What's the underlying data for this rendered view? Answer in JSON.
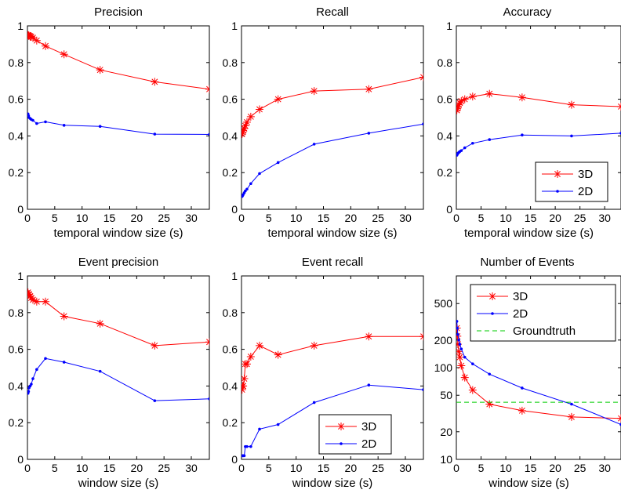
{
  "colors": {
    "s3d": "#ff0000",
    "s2d": "#0000ff",
    "groundtruth": "#00cc00",
    "axis": "#000000",
    "background": "#ffffff"
  },
  "chart_data": [
    {
      "type": "line",
      "title": "Precision",
      "xlabel": "temporal window size (s)",
      "xlim": [
        0,
        33.3
      ],
      "xticks": [
        0,
        5,
        10,
        15,
        20,
        25,
        30
      ],
      "ylim": [
        0,
        1
      ],
      "yticks": [
        0,
        0.2,
        0.4,
        0.6,
        0.8,
        1
      ],
      "ytick_labels": [
        "0",
        "0.2",
        "0.4",
        "0.6",
        "0.8",
        "1"
      ],
      "yscale": "linear",
      "legend": null,
      "series": [
        {
          "key": "3D",
          "marker": "star",
          "x": [
            0.1,
            0.2,
            0.3,
            0.5,
            0.7,
            1.0,
            1.7,
            3.3,
            6.7,
            13.3,
            23.3,
            33.3
          ],
          "y": [
            0.95,
            0.948,
            0.946,
            0.944,
            0.94,
            0.935,
            0.92,
            0.89,
            0.845,
            0.76,
            0.695,
            0.655
          ]
        },
        {
          "key": "2D",
          "marker": "dot",
          "x": [
            0.1,
            0.2,
            0.3,
            0.5,
            0.7,
            1.0,
            1.7,
            3.3,
            6.7,
            13.3,
            23.3,
            33.3
          ],
          "y": [
            0.52,
            0.51,
            0.5,
            0.495,
            0.49,
            0.485,
            0.468,
            0.477,
            0.458,
            0.452,
            0.41,
            0.408
          ]
        }
      ]
    },
    {
      "type": "line",
      "title": "Recall",
      "xlabel": "temporal window size (s)",
      "xlim": [
        0,
        33.3
      ],
      "xticks": [
        0,
        5,
        10,
        15,
        20,
        25,
        30
      ],
      "ylim": [
        0,
        1
      ],
      "yticks": [
        0,
        0.2,
        0.4,
        0.6,
        0.8,
        1
      ],
      "ytick_labels": [
        "0",
        "0.2",
        "0.4",
        "0.6",
        "0.8",
        "1"
      ],
      "yscale": "linear",
      "legend": null,
      "series": [
        {
          "key": "3D",
          "marker": "star",
          "x": [
            0.1,
            0.2,
            0.3,
            0.5,
            0.7,
            1.0,
            1.7,
            3.3,
            6.7,
            13.3,
            23.3,
            33.3
          ],
          "y": [
            0.41,
            0.42,
            0.43,
            0.44,
            0.455,
            0.475,
            0.505,
            0.545,
            0.6,
            0.645,
            0.655,
            0.72
          ]
        },
        {
          "key": "2D",
          "marker": "dot",
          "x": [
            0.1,
            0.2,
            0.3,
            0.5,
            0.7,
            1.0,
            1.7,
            3.3,
            6.7,
            13.3,
            23.3,
            33.3
          ],
          "y": [
            0.07,
            0.075,
            0.08,
            0.09,
            0.1,
            0.11,
            0.14,
            0.195,
            0.255,
            0.355,
            0.415,
            0.465
          ]
        }
      ]
    },
    {
      "type": "line",
      "title": "Accuracy",
      "xlabel": "temporal window size (s)",
      "xlim": [
        0,
        33.3
      ],
      "xticks": [
        0,
        5,
        10,
        15,
        20,
        25,
        30
      ],
      "ylim": [
        0,
        1
      ],
      "yticks": [
        0,
        0.2,
        0.4,
        0.6,
        0.8,
        1
      ],
      "ytick_labels": [
        "0",
        "0.2",
        "0.4",
        "0.6",
        "0.8",
        "1"
      ],
      "yscale": "linear",
      "legend": "bottom-right",
      "series": [
        {
          "key": "3D",
          "marker": "star",
          "name": "3D",
          "x": [
            0.1,
            0.2,
            0.3,
            0.5,
            0.7,
            1.0,
            1.7,
            3.3,
            6.7,
            13.3,
            23.3,
            33.3
          ],
          "y": [
            0.54,
            0.55,
            0.56,
            0.57,
            0.58,
            0.59,
            0.6,
            0.615,
            0.63,
            0.61,
            0.57,
            0.56
          ]
        },
        {
          "key": "2D",
          "marker": "dot",
          "name": "2D",
          "x": [
            0.1,
            0.2,
            0.3,
            0.5,
            0.7,
            1.0,
            1.7,
            3.3,
            6.7,
            13.3,
            23.3,
            33.3
          ],
          "y": [
            0.295,
            0.3,
            0.305,
            0.31,
            0.315,
            0.32,
            0.335,
            0.36,
            0.38,
            0.405,
            0.4,
            0.415
          ]
        }
      ]
    },
    {
      "type": "line",
      "title": "Event precision",
      "xlabel": "window size (s)",
      "xlim": [
        0,
        33.3
      ],
      "xticks": [
        0,
        5,
        10,
        15,
        20,
        25,
        30
      ],
      "ylim": [
        0,
        1
      ],
      "yticks": [
        0,
        0.2,
        0.4,
        0.6,
        0.8,
        1
      ],
      "ytick_labels": [
        "0",
        "0.2",
        "0.4",
        "0.6",
        "0.8",
        "1"
      ],
      "yscale": "linear",
      "legend": null,
      "series": [
        {
          "key": "3D",
          "marker": "star",
          "x": [
            0.1,
            0.2,
            0.3,
            0.5,
            0.7,
            1.0,
            1.7,
            3.3,
            6.7,
            13.3,
            23.3,
            33.3
          ],
          "y": [
            0.91,
            0.9,
            0.9,
            0.89,
            0.88,
            0.87,
            0.86,
            0.86,
            0.78,
            0.74,
            0.62,
            0.64
          ]
        },
        {
          "key": "2D",
          "marker": "dot",
          "x": [
            0.1,
            0.2,
            0.3,
            0.5,
            0.7,
            1.0,
            1.7,
            3.3,
            6.7,
            13.3,
            23.3,
            33.3
          ],
          "y": [
            0.36,
            0.37,
            0.39,
            0.4,
            0.41,
            0.44,
            0.49,
            0.55,
            0.53,
            0.48,
            0.32,
            0.33
          ]
        }
      ]
    },
    {
      "type": "line",
      "title": "Event recall",
      "xlabel": "window size (s)",
      "xlim": [
        0,
        33.3
      ],
      "xticks": [
        0,
        5,
        10,
        15,
        20,
        25,
        30
      ],
      "ylim": [
        0,
        1
      ],
      "yticks": [
        0,
        0.2,
        0.4,
        0.6,
        0.8,
        1
      ],
      "ytick_labels": [
        "0",
        "0.2",
        "0.4",
        "0.6",
        "0.8",
        "1"
      ],
      "yscale": "linear",
      "legend": "bottom-right",
      "series": [
        {
          "key": "3D",
          "marker": "star",
          "name": "3D",
          "x": [
            0.1,
            0.2,
            0.3,
            0.5,
            0.7,
            1.0,
            1.7,
            3.3,
            6.7,
            13.3,
            23.3,
            33.3
          ],
          "y": [
            0.38,
            0.4,
            0.4,
            0.44,
            0.52,
            0.52,
            0.56,
            0.62,
            0.57,
            0.62,
            0.67,
            0.67
          ]
        },
        {
          "key": "2D",
          "marker": "dot",
          "name": "2D",
          "x": [
            0.1,
            0.2,
            0.3,
            0.5,
            0.7,
            1.0,
            1.7,
            3.3,
            6.7,
            13.3,
            23.3,
            33.3
          ],
          "y": [
            0.02,
            0.02,
            0.02,
            0.02,
            0.07,
            0.07,
            0.07,
            0.165,
            0.19,
            0.31,
            0.405,
            0.38
          ]
        }
      ]
    },
    {
      "type": "line",
      "title": "Number of Events",
      "xlabel": "window size (s)",
      "xlim": [
        0,
        33.3
      ],
      "xticks": [
        0,
        5,
        10,
        15,
        20,
        25,
        30
      ],
      "ylim": [
        10,
        1000
      ],
      "yticks": [
        10,
        20,
        50,
        100,
        200,
        500
      ],
      "ytick_labels": [
        "10",
        "20",
        "50",
        "100",
        "200",
        "500"
      ],
      "yscale": "log",
      "legend": "top-right",
      "series": [
        {
          "key": "3D",
          "marker": "star",
          "name": "3D",
          "x": [
            0.1,
            0.2,
            0.3,
            0.5,
            0.7,
            1.0,
            1.7,
            3.3,
            6.7,
            13.3,
            23.3,
            33.3
          ],
          "y": [
            270,
            220,
            180,
            150,
            130,
            105,
            78,
            57,
            40,
            34,
            29,
            28
          ]
        },
        {
          "key": "2D",
          "marker": "dot",
          "name": "2D",
          "x": [
            0.1,
            0.2,
            0.3,
            0.5,
            0.7,
            1.0,
            1.7,
            3.3,
            6.7,
            13.3,
            23.3,
            33.3
          ],
          "y": [
            320,
            270,
            230,
            200,
            180,
            160,
            130,
            110,
            85,
            60,
            40,
            24
          ]
        },
        {
          "key": "GT",
          "marker": "none",
          "dash": true,
          "name": "Groundtruth",
          "x": [
            0,
            33.3
          ],
          "y": [
            42,
            42
          ]
        }
      ]
    }
  ]
}
